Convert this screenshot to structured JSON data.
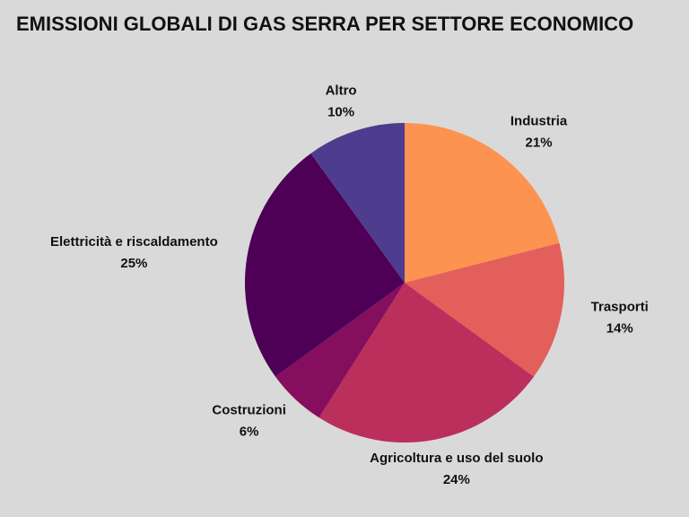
{
  "chart_data": {
    "type": "pie",
    "title": "EMISSIONI GLOBALI DI GAS SERRA PER SETTORE ECONOMICO",
    "categories": [
      "Industria",
      "Trasporti",
      "Agricoltura e uso del suolo",
      "Costruzioni",
      "Elettricità e riscaldamento",
      "Altro"
    ],
    "values": [
      21,
      14,
      24,
      6,
      25,
      10
    ],
    "value_labels": [
      "21%",
      "14%",
      "24%",
      "6%",
      "25%",
      "10%"
    ],
    "colors": [
      "#fd9350",
      "#e35f5b",
      "#bb2f5c",
      "#860e5e",
      "#4d0055",
      "#4e3c8f"
    ]
  }
}
